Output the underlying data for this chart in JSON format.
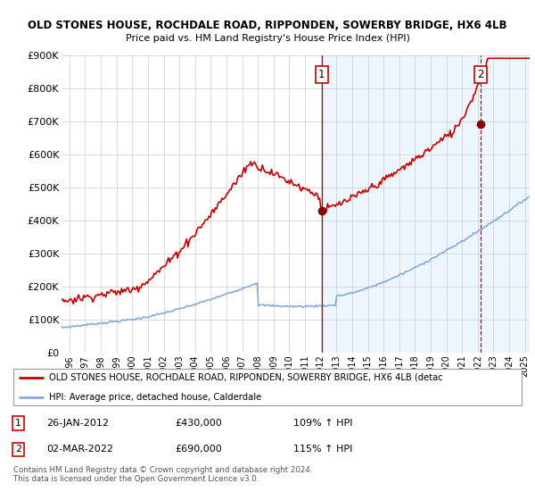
{
  "title": "OLD STONES HOUSE, ROCHDALE ROAD, RIPPONDEN, SOWERBY BRIDGE, HX6 4LB",
  "subtitle": "Price paid vs. HM Land Registry's House Price Index (HPI)",
  "ylim": [
    0,
    900000
  ],
  "yticks": [
    0,
    100000,
    200000,
    300000,
    400000,
    500000,
    600000,
    700000,
    800000,
    900000
  ],
  "ytick_labels": [
    "£0",
    "£100K",
    "£200K",
    "£300K",
    "£400K",
    "£500K",
    "£600K",
    "£700K",
    "£800K",
    "£900K"
  ],
  "grid_color": "#cccccc",
  "hpi_color": "#88aadd",
  "price_color": "#cc0000",
  "shade_color": "#ddeeff",
  "sale1_price": 430000,
  "sale1_x": 2012.07,
  "sale2_price": 690000,
  "sale2_x": 2022.17,
  "legend_label_price": "OLD STONES HOUSE, ROCHDALE ROAD, RIPPONDEN, SOWERBY BRIDGE, HX6 4LB (detac",
  "legend_label_hpi": "HPI: Average price, detached house, Calderdale",
  "footnote": "Contains HM Land Registry data © Crown copyright and database right 2024.\nThis data is licensed under the Open Government Licence v3.0.",
  "table_row1": [
    "1",
    "26-JAN-2012",
    "£430,000",
    "109% ↑ HPI"
  ],
  "table_row2": [
    "2",
    "02-MAR-2022",
    "£690,000",
    "115% ↑ HPI"
  ],
  "xstart": 1995.5,
  "xend": 2025.3
}
